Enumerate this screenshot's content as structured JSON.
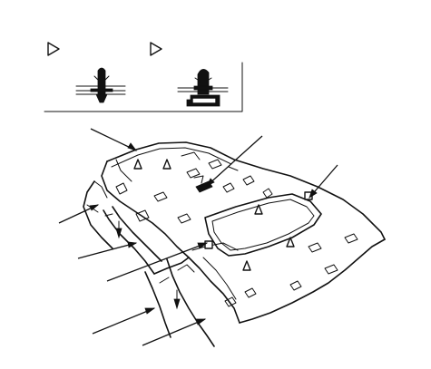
{
  "diagram": {
    "type": "headliner-clip-installation",
    "legend": {
      "items": [
        {
          "icon": "triangle-marker-icon",
          "clip": "push-clip-icon"
        },
        {
          "icon": "triangle-marker-icon",
          "clip": "sunroof-clip-icon"
        }
      ]
    },
    "callouts": 8
  }
}
